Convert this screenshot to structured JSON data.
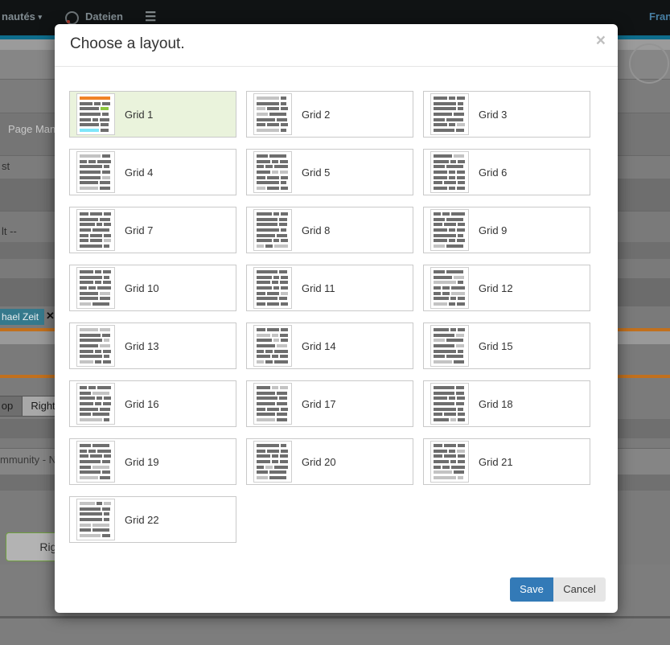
{
  "topbar": {
    "menu_partial_label": "nautés",
    "menu_caret": "▾",
    "files_label": "Dateien",
    "user_name_partial": "Fran",
    "accent_bar_color": "#0e6d8c"
  },
  "background": {
    "page_manager_partial": "Page Mana",
    "partial_label_st": "st",
    "partial_label_default": "lt --",
    "tag_label_partial": "hael Zeit",
    "tag_remove_glyph": "✕",
    "toggle_top_partial": "op",
    "toggle_right_label": "Right",
    "community_partial": "mmunity - Ne",
    "right_column_button_partial": "Right-Co"
  },
  "modal": {
    "title": "Choose a layout.",
    "close_glyph": "×",
    "save_label": "Save",
    "cancel_label": "Cancel",
    "selected_grid": "Grid 1",
    "grids": [
      {
        "label": "Grid 1",
        "selected": true
      },
      {
        "label": "Grid 2",
        "selected": false
      },
      {
        "label": "Grid 3",
        "selected": false
      },
      {
        "label": "Grid 4",
        "selected": false
      },
      {
        "label": "Grid 5",
        "selected": false
      },
      {
        "label": "Grid 6",
        "selected": false
      },
      {
        "label": "Grid 7",
        "selected": false
      },
      {
        "label": "Grid 8",
        "selected": false
      },
      {
        "label": "Grid 9",
        "selected": false
      },
      {
        "label": "Grid 10",
        "selected": false
      },
      {
        "label": "Grid 11",
        "selected": false
      },
      {
        "label": "Grid 12",
        "selected": false
      },
      {
        "label": "Grid 13",
        "selected": false
      },
      {
        "label": "Grid 14",
        "selected": false
      },
      {
        "label": "Grid 15",
        "selected": false
      },
      {
        "label": "Grid 16",
        "selected": false
      },
      {
        "label": "Grid 17",
        "selected": false
      },
      {
        "label": "Grid 18",
        "selected": false
      },
      {
        "label": "Grid 19",
        "selected": false
      },
      {
        "label": "Grid 20",
        "selected": false
      },
      {
        "label": "Grid 21",
        "selected": false
      },
      {
        "label": "Grid 22",
        "selected": false
      }
    ]
  },
  "colors": {
    "selected_bg": "#eaf3dc",
    "save_button_bg": "#337ab7",
    "thumb_bar": "#6e6e6e",
    "thumb_bar_light": "#c3c3c3",
    "thumb_header_orange": "#f08226",
    "thumb_accent_green": "#8dc63f",
    "thumb_footer_cyan": "#7fe6f9",
    "background_orange_line": "#c2701d",
    "tag_teal": "#35798c"
  }
}
